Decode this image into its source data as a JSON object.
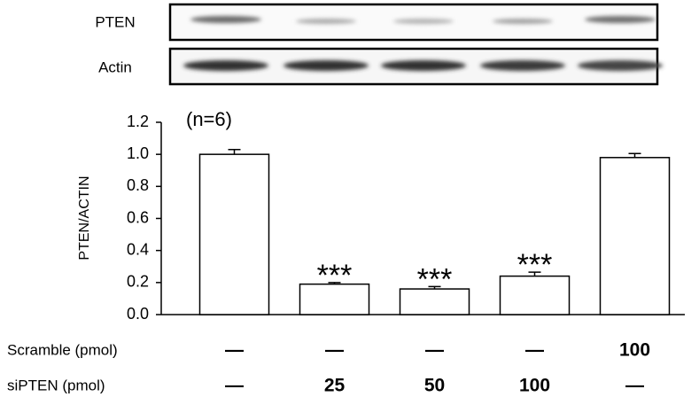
{
  "chart_data": {
    "type": "bar",
    "blot_labels": [
      "PTEN",
      "Actin"
    ],
    "ylabel": "PTEN/ACTIN",
    "annotation": "(n=6)",
    "categories": [
      null,
      null,
      null,
      null,
      null
    ],
    "values": [
      1.0,
      0.19,
      0.16,
      0.24,
      0.98
    ],
    "errors": [
      0.03,
      0.01,
      0.015,
      0.025,
      0.025
    ],
    "significance": [
      null,
      "***",
      "***",
      "***",
      null
    ],
    "color": "#ffffff",
    "ylim": [
      0,
      1.2
    ],
    "yticks": [
      {
        "value": 0,
        "label": "0.0"
      },
      0.2,
      0.4,
      0.6,
      0.8,
      {
        "value": 1,
        "label": "1.0"
      },
      1.2
    ],
    "conditions": [
      {
        "label": "Scramble (pmol)",
        "values": [
          "—",
          "—",
          "—",
          "—",
          "100"
        ]
      },
      {
        "label": "siPTEN (pmol)",
        "values": [
          "—",
          "25",
          "50",
          "100",
          "—"
        ]
      }
    ]
  }
}
